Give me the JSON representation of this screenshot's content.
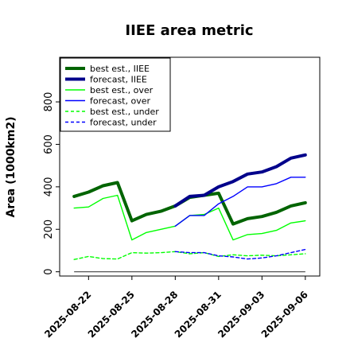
{
  "chart_data": {
    "type": "line",
    "title": "IIEE area metric",
    "xlabel": "",
    "ylabel": "Area (1000km2)",
    "xlim": [
      "2025-08-20",
      "2025-09-07"
    ],
    "ylim": [
      -20,
      1010
    ],
    "yticks": [
      0,
      200,
      400,
      600,
      800
    ],
    "xticks": [
      "2025-08-22",
      "2025-08-25",
      "2025-08-28",
      "2025-08-31",
      "2025-09-03",
      "2025-09-06"
    ],
    "highlighted_xtick": "2025-08-28",
    "highlight_color": "#228b22",
    "grid": false,
    "legend_position": "top-left",
    "zero_line": {
      "x_start": "2025-08-21",
      "x_end": "2025-09-06",
      "value": 0,
      "color": "#555555"
    },
    "series": [
      {
        "name": "best est., IIEE",
        "color": "#006400",
        "style": "solid",
        "weight": "thick",
        "x": [
          "2025-08-21",
          "2025-08-22",
          "2025-08-23",
          "2025-08-24",
          "2025-08-25",
          "2025-08-26",
          "2025-08-27",
          "2025-08-28",
          "2025-08-29",
          "2025-08-30",
          "2025-08-31",
          "2025-09-01",
          "2025-09-02",
          "2025-09-03",
          "2025-09-04",
          "2025-09-05",
          "2025-09-06"
        ],
        "values": [
          355,
          375,
          405,
          420,
          240,
          270,
          285,
          310,
          350,
          360,
          370,
          225,
          250,
          260,
          280,
          310,
          325
        ]
      },
      {
        "name": "forecast, IIEE",
        "color": "#00008b",
        "style": "solid",
        "weight": "thick",
        "x": [
          "2025-08-28",
          "2025-08-29",
          "2025-08-30",
          "2025-08-31",
          "2025-09-01",
          "2025-09-02",
          "2025-09-03",
          "2025-09-04",
          "2025-09-05",
          "2025-09-06"
        ],
        "values": [
          310,
          355,
          360,
          400,
          425,
          460,
          470,
          495,
          535,
          550
        ]
      },
      {
        "name": "best est., over",
        "color": "#00ff00",
        "style": "solid",
        "weight": "thin",
        "x": [
          "2025-08-21",
          "2025-08-22",
          "2025-08-23",
          "2025-08-24",
          "2025-08-25",
          "2025-08-26",
          "2025-08-27",
          "2025-08-28",
          "2025-08-29",
          "2025-08-30",
          "2025-08-31",
          "2025-09-01",
          "2025-09-02",
          "2025-09-03",
          "2025-09-04",
          "2025-09-05",
          "2025-09-06"
        ],
        "values": [
          300,
          305,
          345,
          360,
          150,
          185,
          200,
          215,
          265,
          270,
          300,
          150,
          175,
          180,
          195,
          230,
          240
        ]
      },
      {
        "name": "forecast, over",
        "color": "#0000ff",
        "style": "solid",
        "weight": "thin",
        "x": [
          "2025-08-28",
          "2025-08-29",
          "2025-08-30",
          "2025-08-31",
          "2025-09-01",
          "2025-09-02",
          "2025-09-03",
          "2025-09-04",
          "2025-09-05",
          "2025-09-06"
        ],
        "values": [
          215,
          265,
          265,
          320,
          355,
          400,
          400,
          415,
          445,
          445
        ]
      },
      {
        "name": "best est., under",
        "color": "#00ff00",
        "style": "dashed",
        "weight": "thin",
        "x": [
          "2025-08-21",
          "2025-08-22",
          "2025-08-23",
          "2025-08-24",
          "2025-08-25",
          "2025-08-26",
          "2025-08-27",
          "2025-08-28",
          "2025-08-29",
          "2025-08-30",
          "2025-08-31",
          "2025-09-01",
          "2025-09-02",
          "2025-09-03",
          "2025-09-04",
          "2025-09-05",
          "2025-09-06"
        ],
        "values": [
          58,
          72,
          62,
          60,
          90,
          88,
          90,
          95,
          85,
          90,
          72,
          80,
          75,
          78,
          75,
          80,
          85
        ]
      },
      {
        "name": "forecast, under",
        "color": "#0000ff",
        "style": "dashed",
        "weight": "thin",
        "x": [
          "2025-08-28",
          "2025-08-29",
          "2025-08-30",
          "2025-08-31",
          "2025-09-01",
          "2025-09-02",
          "2025-09-03",
          "2025-09-04",
          "2025-09-05",
          "2025-09-06"
        ],
        "values": [
          95,
          90,
          90,
          75,
          70,
          60,
          65,
          75,
          90,
          105
        ]
      }
    ]
  }
}
